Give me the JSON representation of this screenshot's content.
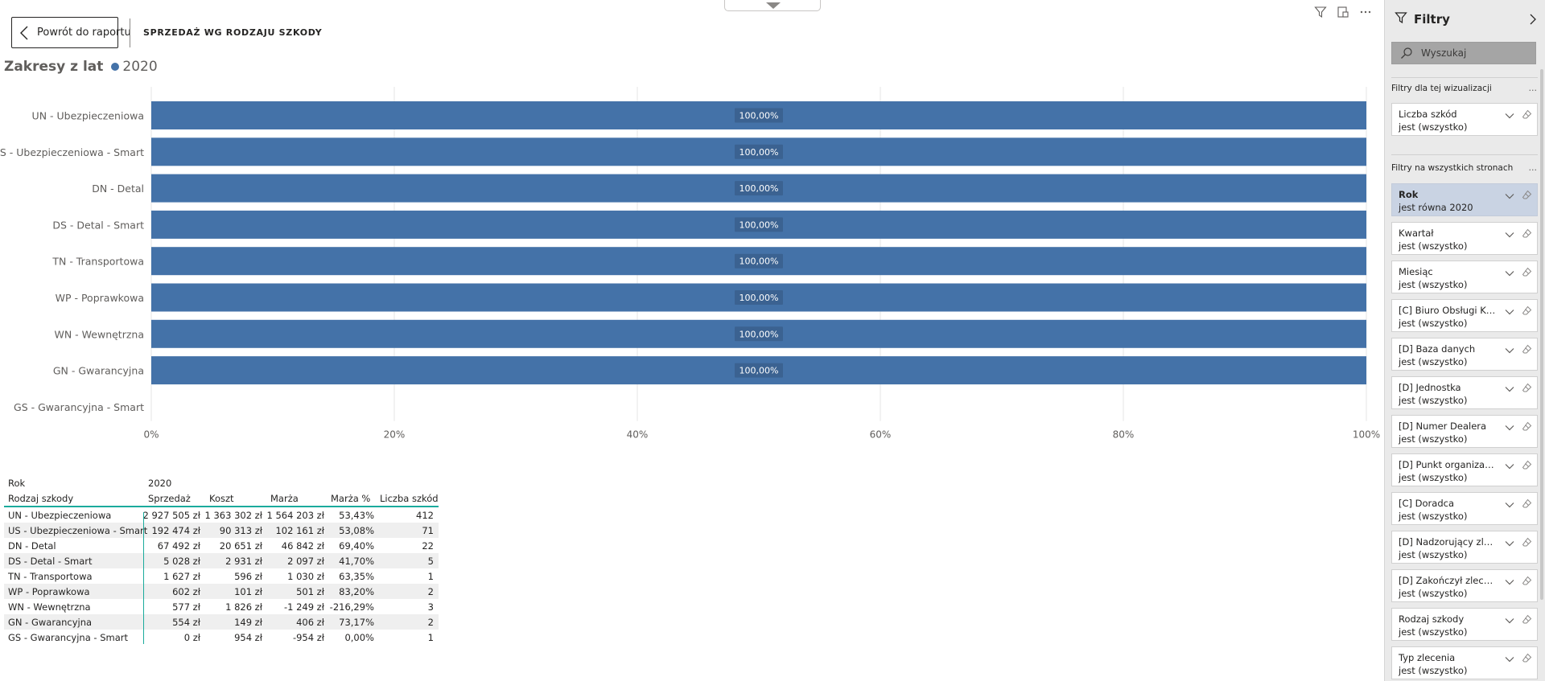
{
  "header": {
    "back_label": "Powrót do raportu",
    "page_title": "SPRZEDAŻ WG RODZAJU SZKODY"
  },
  "icons": {
    "back": "chevron-left-icon",
    "filter": "filter-icon",
    "focus": "focus-mode-icon",
    "more": "more-options-icon",
    "pull_tab": "collapse-arrow-icon"
  },
  "legend": {
    "title": "Zakresy z lat",
    "series_name": "2020",
    "color": "#4472a8"
  },
  "chart_data": {
    "type": "bar",
    "orientation": "horizontal",
    "stacked_percent": true,
    "categories": [
      "UN - Ubezpieczeniowa",
      "US - Ubezpieczeniowa - Smart",
      "DN - Detal",
      "DS - Detal - Smart",
      "TN - Transportowa",
      "WP - Poprawkowa",
      "WN - Wewnętrzna",
      "GN - Gwarancyjna",
      "GS - Gwarancyjna - Smart"
    ],
    "series": [
      {
        "name": "2020",
        "values": [
          100,
          100,
          100,
          100,
          100,
          100,
          100,
          100,
          null
        ],
        "data_labels": [
          "100,00%",
          "100,00%",
          "100,00%",
          "100,00%",
          "100,00%",
          "100,00%",
          "100,00%",
          "100,00%",
          ""
        ]
      }
    ],
    "x_ticks": [
      "0%",
      "20%",
      "40%",
      "60%",
      "80%",
      "100%"
    ],
    "xlim": [
      0,
      100
    ],
    "grid": true,
    "colors": {
      "bar": "#4472a8",
      "label_bg": "#3b6291",
      "grid": "#e6e6e6",
      "axis_text": "#605e5c"
    }
  },
  "table": {
    "row_header": "Rok",
    "year": "2020",
    "first_col": "Rodzaj szkody",
    "columns": [
      "Sprzedaż",
      "Koszt",
      "Marża",
      "Marża %",
      "Liczba szkód"
    ],
    "rows": [
      [
        "UN - Ubezpieczeniowa",
        "2 927 505 zł",
        "1 363 302 zł",
        "1 564 203 zł",
        "53,43%",
        "412"
      ],
      [
        "US - Ubezpieczeniowa - Smart",
        "192 474 zł",
        "90 313 zł",
        "102 161 zł",
        "53,08%",
        "71"
      ],
      [
        "DN - Detal",
        "67 492 zł",
        "20 651 zł",
        "46 842 zł",
        "69,40%",
        "22"
      ],
      [
        "DS - Detal - Smart",
        "5 028 zł",
        "2 931 zł",
        "2 097 zł",
        "41,70%",
        "5"
      ],
      [
        "TN - Transportowa",
        "1 627 zł",
        "596 zł",
        "1 030 zł",
        "63,35%",
        "1"
      ],
      [
        "WP - Poprawkowa",
        "602 zł",
        "101 zł",
        "501 zł",
        "83,20%",
        "2"
      ],
      [
        "WN - Wewnętrzna",
        "577 zł",
        "1 826 zł",
        "-1 249 zł",
        "-216,29%",
        "3"
      ],
      [
        "GN - Gwarancyjna",
        "554 zł",
        "149 zł",
        "406 zł",
        "73,17%",
        "2"
      ],
      [
        "GS - Gwarancyjna - Smart",
        "0 zł",
        "954 zł",
        "-954 zł",
        "0,00%",
        "1"
      ]
    ]
  },
  "filters": {
    "title": "Filtry",
    "search_placeholder": "Wyszukaj",
    "section_visual": "Filtry dla tej wizualizacji",
    "section_all": "Filtry na wszystkich stronach",
    "more": "…",
    "visual_filters": [
      {
        "name": "Liczba szkód",
        "value": "jest (wszystko)"
      }
    ],
    "page_filters": [
      {
        "name": "Rok",
        "value": "jest równa 2020",
        "active": true
      },
      {
        "name": "Kwartał",
        "value": "jest (wszystko)"
      },
      {
        "name": "Miesiąc",
        "value": "jest (wszystko)"
      },
      {
        "name": "[C] Biuro Obsługi Klie...",
        "value": "jest (wszystko)"
      },
      {
        "name": "[D] Baza danych",
        "value": "jest (wszystko)"
      },
      {
        "name": "[D] Jednostka",
        "value": "jest (wszystko)"
      },
      {
        "name": "[D] Numer Dealera",
        "value": "jest (wszystko)"
      },
      {
        "name": "[D] Punkt organizacyjny",
        "value": "jest (wszystko)"
      },
      {
        "name": "[C] Doradca",
        "value": "jest (wszystko)"
      },
      {
        "name": "[D] Nadzorujący zlece...",
        "value": "jest (wszystko)"
      },
      {
        "name": "[D] Zakończył zlecenie",
        "value": "jest (wszystko)"
      },
      {
        "name": "Rodzaj szkody",
        "value": "jest (wszystko)"
      },
      {
        "name": "Typ zlecenia",
        "value": "jest (wszystko)"
      }
    ],
    "accent_active": "#c9d3e3"
  }
}
